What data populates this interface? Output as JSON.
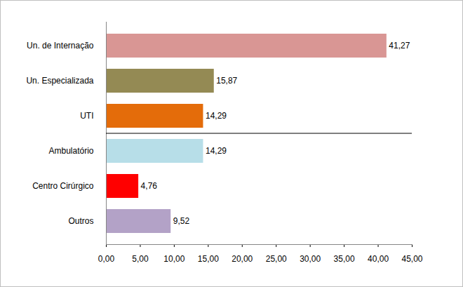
{
  "chart_data": {
    "type": "bar",
    "orientation": "horizontal",
    "categories": [
      "Un. de Internação",
      "Un. Especializada",
      "UTI",
      "Ambulatório",
      "Centro Cirúrgico",
      "Outros"
    ],
    "values": [
      41.27,
      15.87,
      14.29,
      14.29,
      4.76,
      9.52
    ],
    "value_labels": [
      "41,27",
      "15,87",
      "14,29",
      "14,29",
      "4,76",
      "9,52"
    ],
    "colors": [
      "#d99694",
      "#948a54",
      "#e46c0a",
      "#b7dee8",
      "#ff0000",
      "#b3a2c7"
    ],
    "xlim": [
      0,
      45
    ],
    "xticks": [
      {
        "value": 0,
        "label": "0,00"
      },
      {
        "value": 5,
        "label": "5,00"
      },
      {
        "value": 10,
        "label": "10,00"
      },
      {
        "value": 15,
        "label": "15,00"
      },
      {
        "value": 20,
        "label": "20,00"
      },
      {
        "value": 25,
        "label": "25,00"
      },
      {
        "value": 30,
        "label": "30,00"
      },
      {
        "value": 35,
        "label": "35,00"
      },
      {
        "value": 40,
        "label": "40,00"
      },
      {
        "value": 45,
        "label": "45,00"
      }
    ],
    "grid": false,
    "data_labels": true
  }
}
